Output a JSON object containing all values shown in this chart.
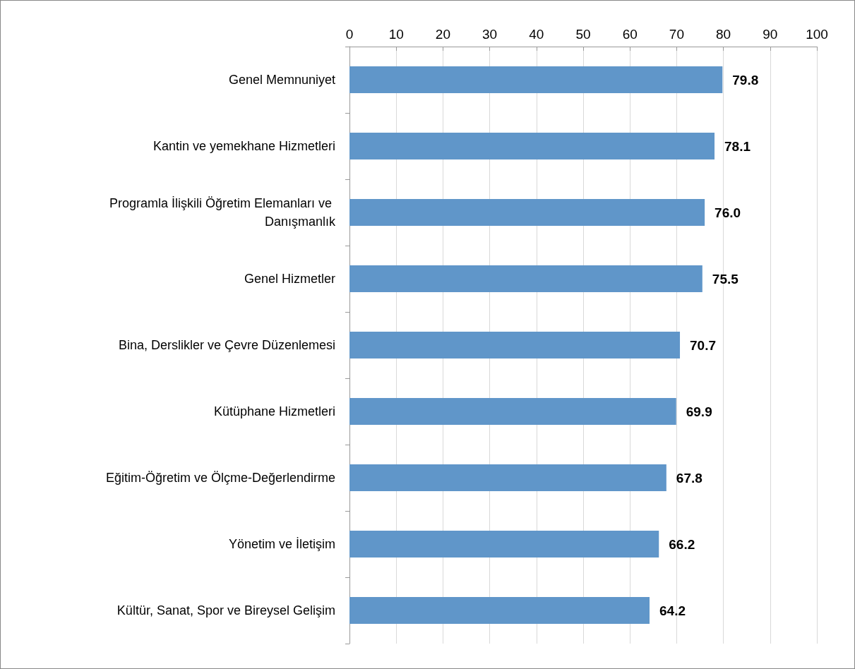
{
  "chart_data": {
    "type": "bar",
    "orientation": "horizontal",
    "categories": [
      "Genel Memnuniyet",
      "Kantin ve yemekhane Hizmetleri",
      "Programla İlişkili Öğretim Elemanları ve Danışmanlık",
      "Genel Hizmetler",
      "Bina, Derslikler ve Çevre Düzenlemesi",
      "Kütüphane Hizmetleri",
      "Eğitim-Öğretim ve Ölçme-Değerlendirme",
      "Yönetim ve İletişim",
      "Kültür, Sanat, Spor ve Bireysel Gelişim"
    ],
    "values": [
      79.8,
      78.1,
      76.0,
      75.5,
      70.7,
      69.9,
      67.8,
      66.2,
      64.2
    ],
    "value_labels": [
      "79.8",
      "78.1",
      "76.0",
      "75.5",
      "70.7",
      "69.9",
      "67.8",
      "66.2",
      "64.2"
    ],
    "color": "#6096c9",
    "xlim": [
      0,
      100
    ],
    "xticks": [
      0,
      10,
      20,
      30,
      40,
      50,
      60,
      70,
      80,
      90,
      100
    ],
    "grid": "x"
  }
}
